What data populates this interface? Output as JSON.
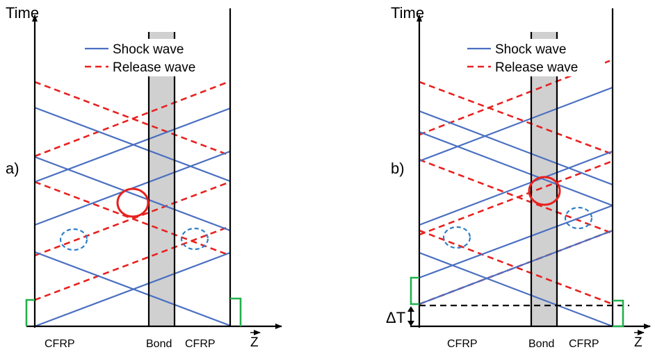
{
  "panels": [
    {
      "id": "a",
      "panel_label": "a)",
      "axis_y_label": "Time",
      "axis_x_label": "Z",
      "region_labels": {
        "left": "CFRP",
        "bond": "Bond",
        "right": "CFRP"
      },
      "legend": {
        "shock": "Shock wave",
        "release": "Release wave"
      }
    },
    {
      "id": "b",
      "panel_label": "b)",
      "axis_y_label": "Time",
      "axis_x_label": "Z",
      "region_labels": {
        "left": "CFRP",
        "bond": "Bond",
        "right": "CFRP"
      },
      "legend": {
        "shock": "Shock wave",
        "release": "Release wave"
      },
      "delay_label": "ΔT"
    }
  ],
  "colors": {
    "shock": "#4a6fc1",
    "release": "#e8211f",
    "bond_fill": "#d0d0d0",
    "pulse": "#22b14c",
    "circle_blue": "#2e7fc9",
    "circle_red": "#e8211f",
    "axis": "#000000"
  }
}
